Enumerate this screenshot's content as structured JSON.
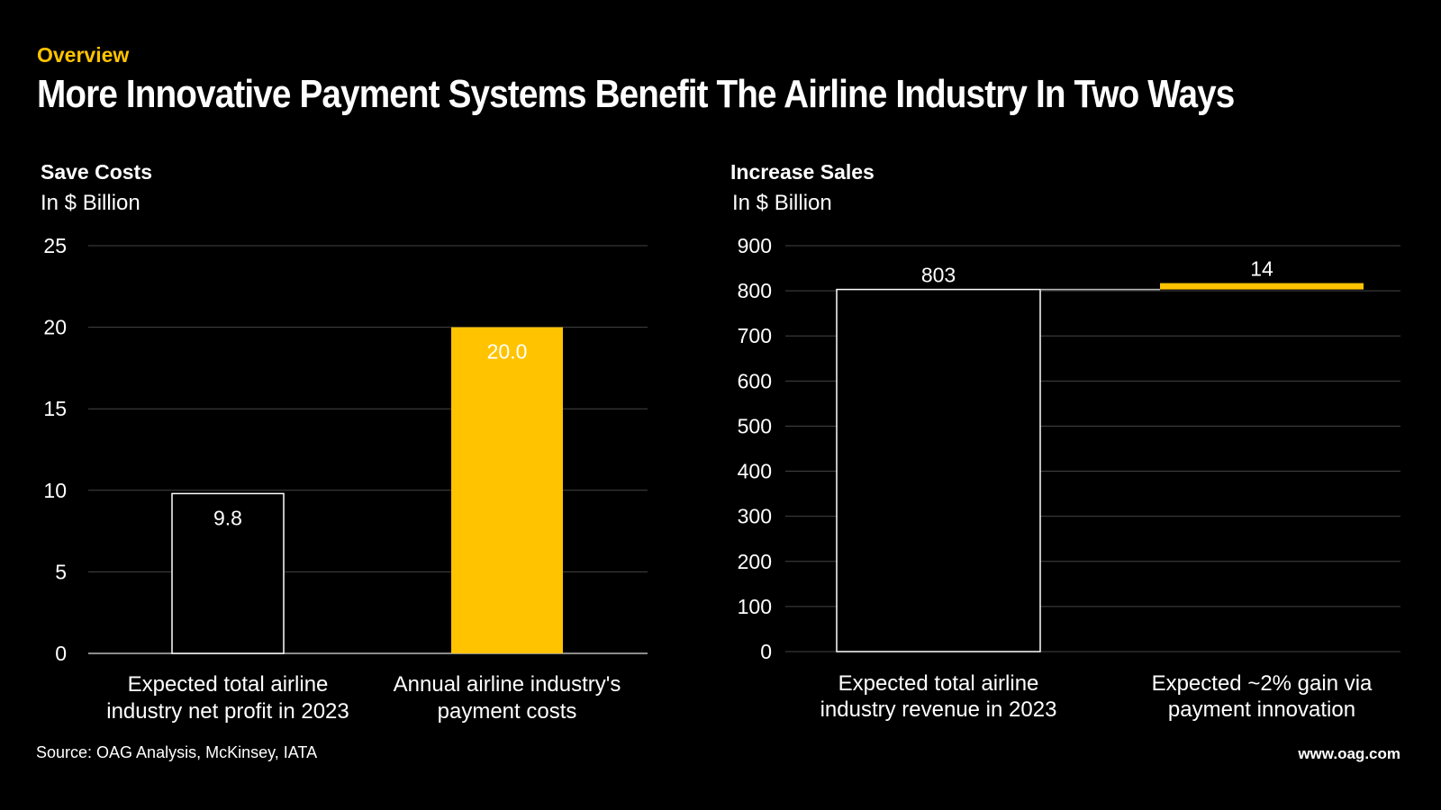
{
  "header": {
    "eyebrow": "Overview",
    "title": "More Innovative Payment Systems Benefit The Airline Industry In Two Ways"
  },
  "footer": {
    "source": "Source: OAG Analysis, McKinsey, IATA",
    "site": "www.oag.com"
  },
  "colors": {
    "accent": "#ffc300",
    "background": "#000000",
    "text": "#ffffff",
    "grid": "#3a3a3a"
  },
  "chart_data": [
    {
      "type": "bar",
      "title": "Save Costs",
      "subtitle": "In $ Billion",
      "categories": [
        [
          "Expected total airline",
          "industry net profit in 2023"
        ],
        [
          "Annual airline industry's",
          "payment costs"
        ]
      ],
      "values": [
        9.8,
        20.0
      ],
      "labels": [
        "9.8",
        "20.0"
      ],
      "styles": [
        "outline",
        "filled"
      ],
      "yticks": [
        0,
        5,
        10,
        15,
        20,
        25
      ],
      "ylim": [
        0,
        25
      ],
      "grid": true
    },
    {
      "type": "bar",
      "subtype": "waterfall",
      "title": "Increase Sales",
      "subtitle": "In $ Billion",
      "categories": [
        [
          "Expected total airline",
          "industry revenue in 2023"
        ],
        [
          "Expected ~2% gain via",
          "payment innovation"
        ]
      ],
      "values": [
        803,
        14
      ],
      "bases": [
        0,
        803
      ],
      "labels": [
        "803",
        "14"
      ],
      "styles": [
        "outline",
        "filled"
      ],
      "yticks": [
        0,
        100,
        200,
        300,
        400,
        500,
        600,
        700,
        800,
        900
      ],
      "ylim": [
        0,
        900
      ],
      "grid": true
    }
  ]
}
